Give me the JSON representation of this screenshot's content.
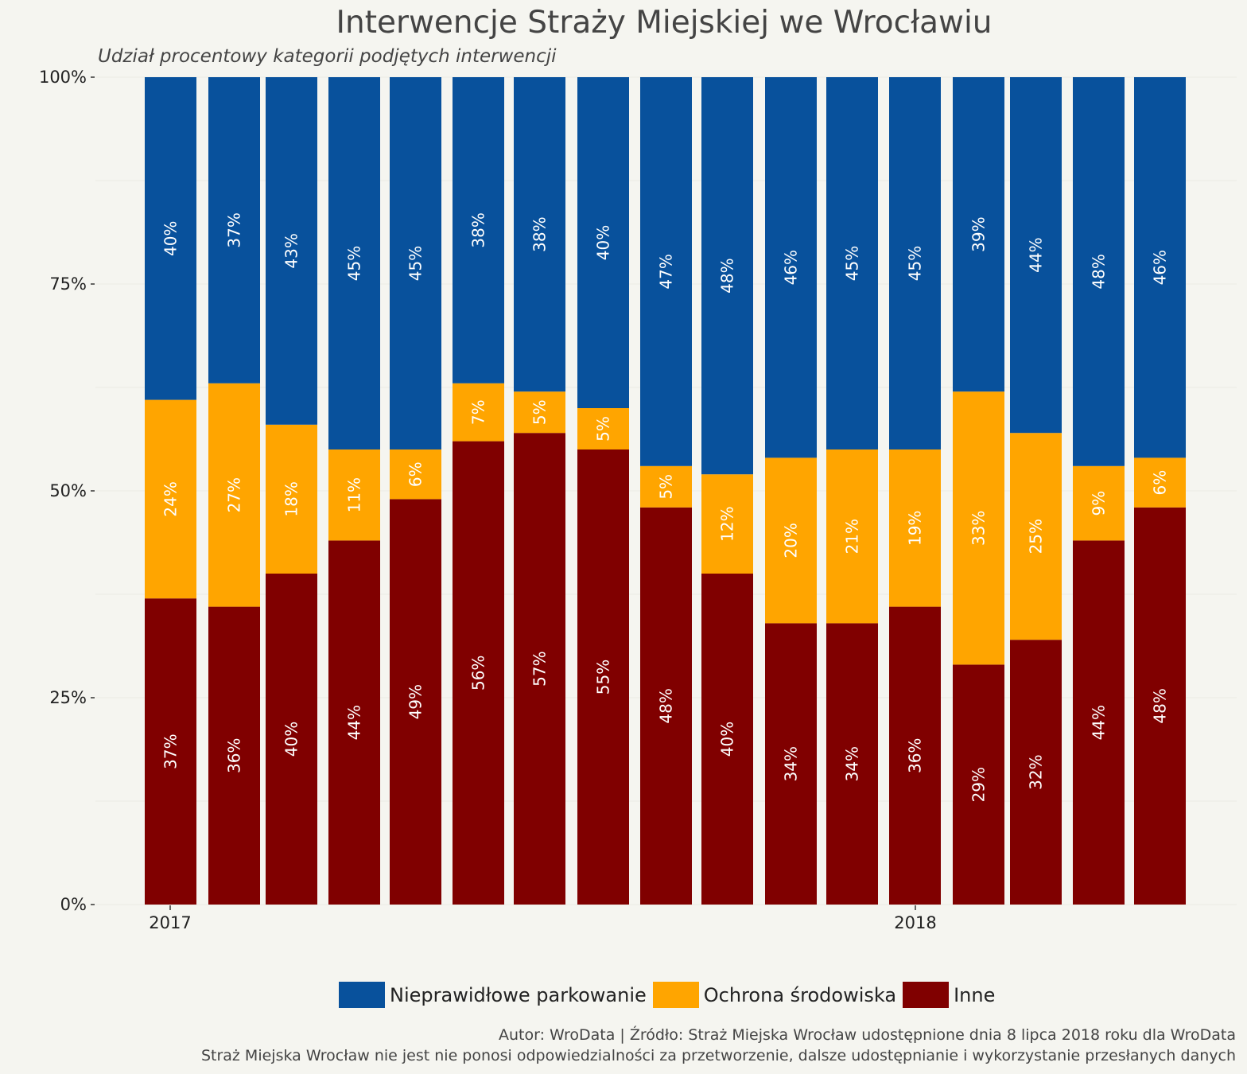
{
  "chart_data": {
    "type": "bar",
    "stacked": true,
    "orientation": "vertical",
    "title": "Interwencje Straży Miejskiej we Wrocławiu",
    "subtitle": "Udział procentowy kategorii podjętych interwencji",
    "ylim": [
      0,
      100
    ],
    "y_ticks": [
      "0%",
      "25%",
      "50%",
      "75%",
      "100%"
    ],
    "x_tick_labels": [
      "2017",
      "2018"
    ],
    "grid": true,
    "legend_position": "bottom",
    "series": [
      {
        "name": "Inne",
        "color": "#800000",
        "values": [
          37,
          36,
          40,
          44,
          49,
          56,
          57,
          55,
          48,
          40,
          34,
          34,
          36,
          29,
          32,
          44,
          48
        ],
        "labels": [
          "37%",
          "36%",
          "40%",
          "44%",
          "49%",
          "56%",
          "57%",
          "55%",
          "48%",
          "40%",
          "34%",
          "34%",
          "36%",
          "29%",
          "32%",
          "44%",
          "48%"
        ]
      },
      {
        "name": "Ochrona środowiska",
        "color": "#ffa500",
        "values": [
          24,
          27,
          18,
          11,
          6,
          7,
          5,
          5,
          5,
          12,
          20,
          21,
          19,
          33,
          25,
          9,
          6
        ],
        "labels": [
          "24%",
          "27%",
          "18%",
          "11%",
          "6%",
          "7%",
          "5%",
          "5%",
          "5%",
          "12%",
          "20%",
          "21%",
          "19%",
          "33%",
          "25%",
          "9%",
          "6%"
        ]
      },
      {
        "name": "Nieprawidłowe parkowanie",
        "color": "#08519c",
        "values": [
          40,
          37,
          43,
          45,
          45,
          38,
          38,
          40,
          47,
          48,
          46,
          45,
          45,
          39,
          44,
          48,
          46
        ],
        "labels": [
          "40%",
          "37%",
          "43%",
          "45%",
          "45%",
          "38%",
          "38%",
          "40%",
          "47%",
          "48%",
          "46%",
          "45%",
          "45%",
          "39%",
          "44%",
          "48%",
          "46%"
        ]
      }
    ]
  },
  "legend": {
    "items": [
      {
        "label": "Nieprawidłowe parkowanie",
        "color": "#08519c"
      },
      {
        "label": "Ochrona środowiska",
        "color": "#ffa500"
      },
      {
        "label": "Inne",
        "color": "#800000"
      }
    ]
  },
  "caption": {
    "line1": "Autor: WroData | Źródło: Straż Miejska Wrocław udostępnione dnia 8 lipca 2018 roku dla WroData",
    "line2": "Straż Miejska Wrocław nie jest nie ponosi odpowiedzialności za przetworzenie, dalsze udostępnianie i wykorzystanie przesłanych danych"
  }
}
